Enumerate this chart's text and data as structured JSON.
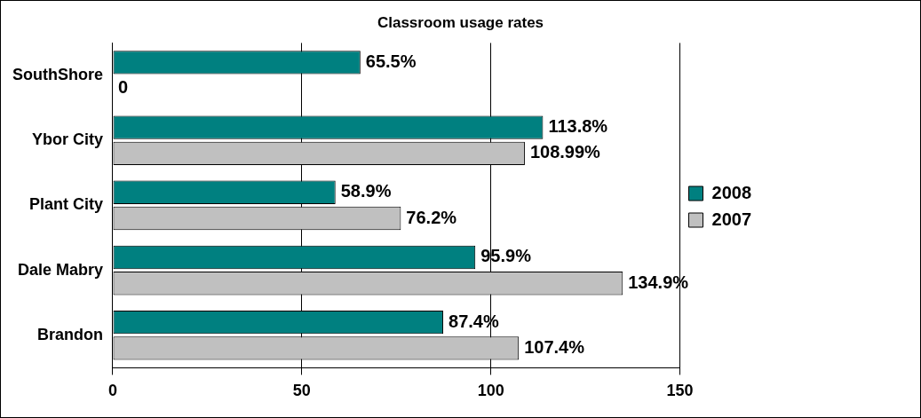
{
  "chart_data": {
    "type": "bar",
    "orientation": "horizontal",
    "title": "Classroom usage rates",
    "categories": [
      "SouthShore",
      "Ybor City",
      "Plant City",
      "Dale Mabry",
      "Brandon"
    ],
    "series": [
      {
        "name": "2008",
        "color": "#008080",
        "values": [
          65.5,
          113.8,
          58.9,
          95.9,
          87.4
        ],
        "value_labels": [
          "65.5%",
          "113.8%",
          "58.9%",
          "95.9%",
          "87.4%"
        ]
      },
      {
        "name": "2007",
        "color": "#c0c0c0",
        "values": [
          0,
          108.99,
          76.2,
          134.9,
          107.4
        ],
        "value_labels": [
          "0",
          "108.99%",
          "76.2%",
          "134.9%",
          "107.4%"
        ]
      }
    ],
    "xlim": [
      0,
      150
    ],
    "xticks": [
      0,
      50,
      100,
      150
    ],
    "grid": "x",
    "legend": "right"
  }
}
